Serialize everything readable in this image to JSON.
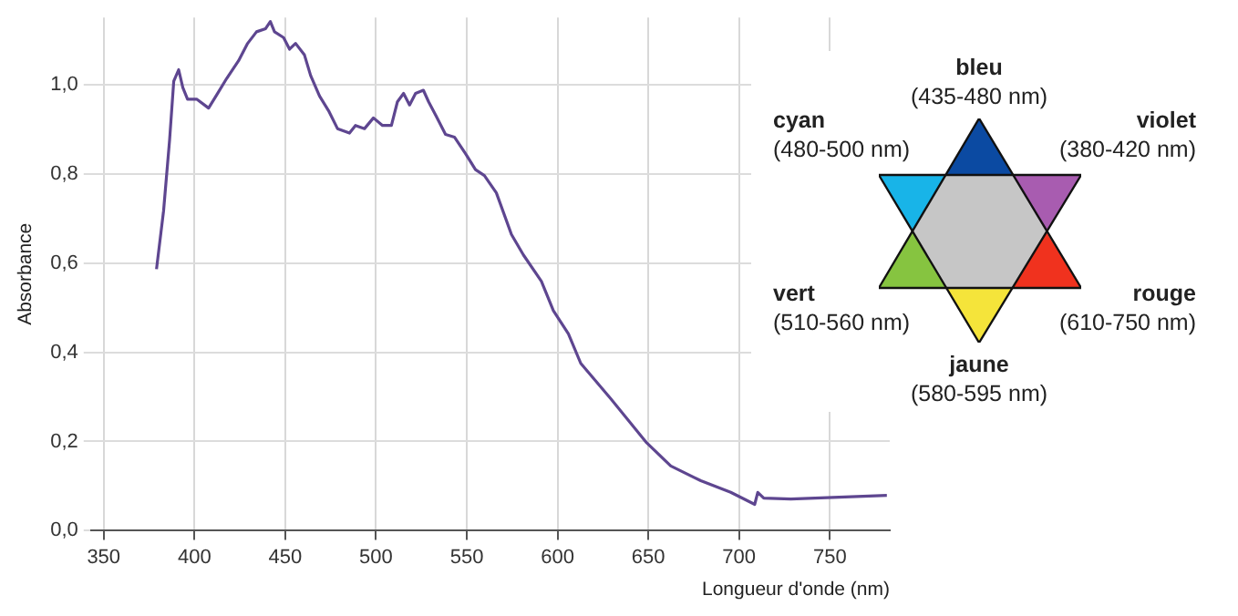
{
  "chart_data": {
    "type": "line",
    "xlabel": "Longueur d'onde (nm)",
    "ylabel": "Absorbance",
    "x": [
      379.1,
      383.0,
      386.3,
      388.6,
      391.3,
      393.6,
      396.2,
      401.2,
      407.8,
      412.8,
      417.7,
      424.3,
      429.3,
      434.2,
      439.2,
      441.8,
      444.1,
      449.1,
      452.4,
      455.7,
      460.6,
      464.0,
      468.9,
      473.9,
      478.8,
      485.4,
      488.7,
      493.7,
      498.6,
      503.6,
      508.5,
      511.8,
      515.2,
      518.5,
      521.8,
      526.1,
      529.0,
      533.3,
      538.3,
      543.2,
      549.8,
      554.8,
      559.7,
      566.3,
      574.6,
      581.2,
      591.1,
      597.7,
      606.0,
      612.8,
      629.3,
      649.1,
      662.4,
      678.9,
      695.4,
      708.6,
      710.3,
      713.6,
      728.5,
      755.0,
      781.4
    ],
    "series": [
      {
        "color": "#5e4690",
        "values": [
          0.586,
          0.717,
          0.875,
          1.007,
          1.033,
          0.993,
          0.967,
          0.967,
          0.947,
          0.98,
          1.013,
          1.053,
          1.092,
          1.118,
          1.125,
          1.141,
          1.118,
          1.105,
          1.079,
          1.092,
          1.066,
          1.02,
          0.974,
          0.941,
          0.901,
          0.891,
          0.908,
          0.901,
          0.925,
          0.908,
          0.908,
          0.961,
          0.98,
          0.954,
          0.98,
          0.987,
          0.961,
          0.928,
          0.888,
          0.882,
          0.842,
          0.809,
          0.796,
          0.757,
          0.664,
          0.618,
          0.559,
          0.493,
          0.441,
          0.375,
          0.296,
          0.197,
          0.145,
          0.112,
          0.086,
          0.059,
          0.086,
          0.073,
          0.071,
          0.075,
          0.079
        ]
      }
    ],
    "xlim": [
      343,
      783
    ],
    "xticks": [
      350,
      400,
      450,
      500,
      550,
      600,
      650,
      700,
      750
    ],
    "ylim": [
      0,
      1.15
    ],
    "yticks": [
      {
        "value": 0,
        "label": "0,0"
      },
      {
        "value": 0.2,
        "label": "0,2"
      },
      {
        "value": 0.4,
        "label": "0,4"
      },
      {
        "value": 0.6,
        "label": "0,6"
      },
      {
        "value": 0.8,
        "label": "0,8"
      },
      {
        "value": 1.0,
        "label": "1,0"
      }
    ],
    "grid": true,
    "legend": false,
    "marker": "none",
    "line_style": "solid",
    "annotations": [
      "bleu",
      "(435-480 nm)",
      "cyan",
      "(480-500 nm)",
      "violet",
      "(380-420 nm)",
      "vert",
      "(510-560 nm)",
      "rouge",
      "(610-750 nm)",
      "jaune",
      "(580-595 nm)"
    ]
  }
}
